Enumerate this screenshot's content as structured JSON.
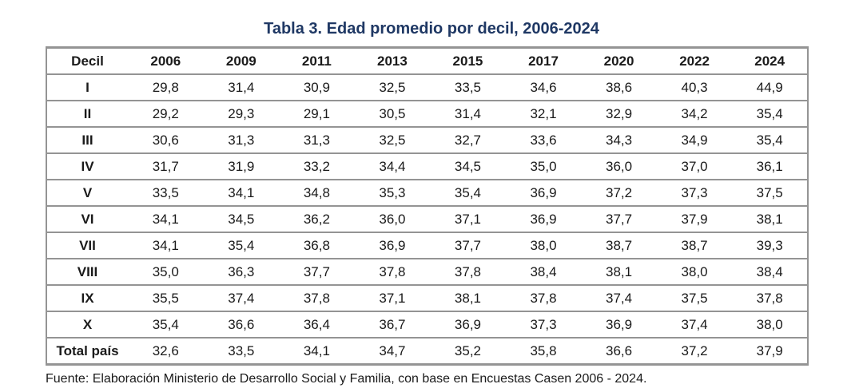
{
  "title": "Tabla 3. Edad promedio por decil, 2006-2024",
  "source": "Fuente: Elaboración Ministerio de Desarrollo Social y Familia, con base en Encuestas Casen 2006 - 2024.",
  "colors": {
    "title": "#1f3864",
    "table_lines": "#949494",
    "text": "#1a1a1a",
    "background": "#ffffff"
  },
  "table": {
    "columns": [
      "Decil",
      "2006",
      "2009",
      "2011",
      "2013",
      "2015",
      "2017",
      "2020",
      "2022",
      "2024"
    ],
    "rows": [
      {
        "label": "I",
        "values": [
          "29,8",
          "31,4",
          "30,9",
          "32,5",
          "33,5",
          "34,6",
          "38,6",
          "40,3",
          "44,9"
        ]
      },
      {
        "label": "II",
        "values": [
          "29,2",
          "29,3",
          "29,1",
          "30,5",
          "31,4",
          "32,1",
          "32,9",
          "34,2",
          "35,4"
        ]
      },
      {
        "label": "III",
        "values": [
          "30,6",
          "31,3",
          "31,3",
          "32,5",
          "32,7",
          "33,6",
          "34,3",
          "34,9",
          "35,4"
        ]
      },
      {
        "label": "IV",
        "values": [
          "31,7",
          "31,9",
          "33,2",
          "34,4",
          "34,5",
          "35,0",
          "36,0",
          "37,0",
          "36,1"
        ]
      },
      {
        "label": "V",
        "values": [
          "33,5",
          "34,1",
          "34,8",
          "35,3",
          "35,4",
          "36,9",
          "37,2",
          "37,3",
          "37,5"
        ]
      },
      {
        "label": "VI",
        "values": [
          "34,1",
          "34,5",
          "36,2",
          "36,0",
          "37,1",
          "36,9",
          "37,7",
          "37,9",
          "38,1"
        ]
      },
      {
        "label": "VII",
        "values": [
          "34,1",
          "35,4",
          "36,8",
          "36,9",
          "37,7",
          "38,0",
          "38,7",
          "38,7",
          "39,3"
        ]
      },
      {
        "label": "VIII",
        "values": [
          "35,0",
          "36,3",
          "37,7",
          "37,8",
          "37,8",
          "38,4",
          "38,1",
          "38,0",
          "38,4"
        ]
      },
      {
        "label": "IX",
        "values": [
          "35,5",
          "37,4",
          "37,8",
          "37,1",
          "38,1",
          "37,8",
          "37,4",
          "37,5",
          "37,8"
        ]
      },
      {
        "label": "X",
        "values": [
          "35,4",
          "36,6",
          "36,4",
          "36,7",
          "36,9",
          "37,3",
          "36,9",
          "37,4",
          "38,0"
        ]
      },
      {
        "label": "Total país",
        "values": [
          "32,6",
          "33,5",
          "34,1",
          "34,7",
          "35,2",
          "35,8",
          "36,6",
          "37,2",
          "37,9"
        ],
        "is_total": true
      }
    ]
  }
}
